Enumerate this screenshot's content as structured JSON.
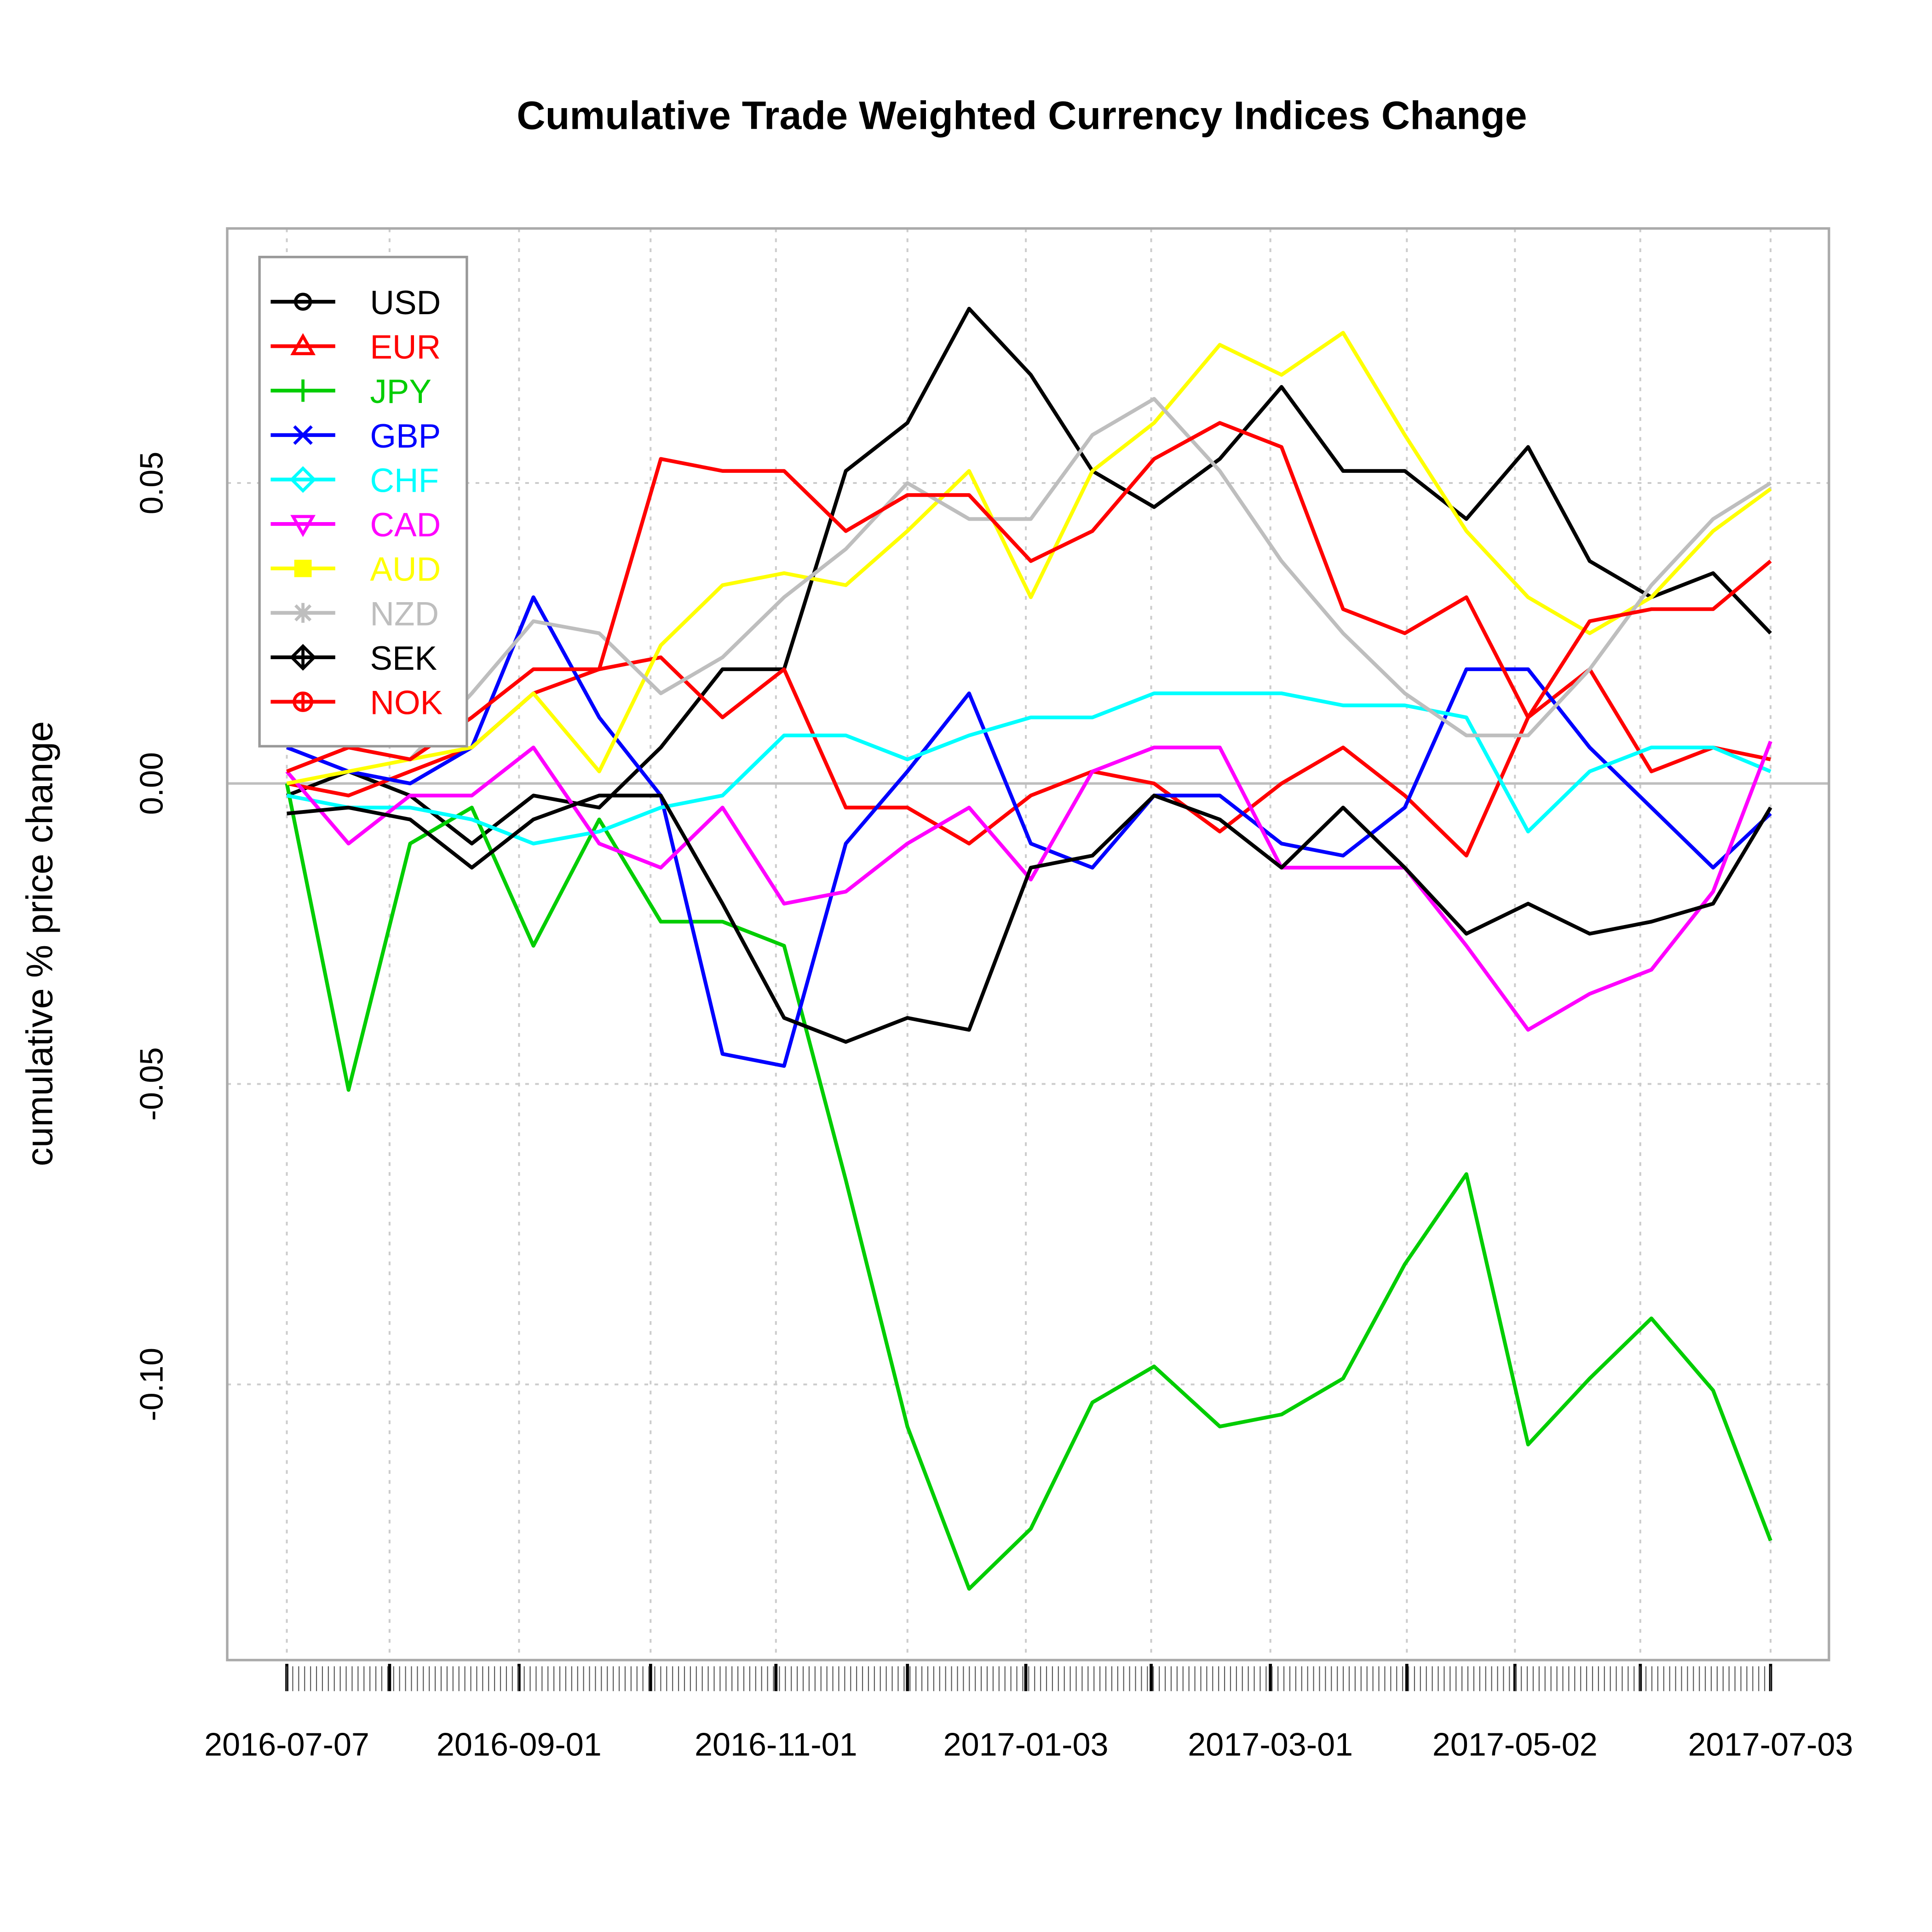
{
  "chart_data": {
    "type": "line",
    "title": "Cumulative Trade Weighted Currency Indices Change",
    "xlabel": "",
    "ylabel": "cumulative % price change",
    "x_unit": "days since 2016-07-07",
    "xlim": [
      0,
      361
    ],
    "ylim": [
      -0.146,
      0.0926
    ],
    "grid": true,
    "legend_position": "top-left",
    "y_ticks": [
      {
        "value": 0.05,
        "label": "0.05"
      },
      {
        "value": 0.0,
        "label": "0.00"
      },
      {
        "value": -0.05,
        "label": "-0.05"
      },
      {
        "value": -0.1,
        "label": "-0.10"
      }
    ],
    "x_ticks": [
      {
        "value": 0,
        "label": "2016-07-07"
      },
      {
        "value": 25,
        "label": ""
      },
      {
        "value": 56.5,
        "label": "2016-09-01"
      },
      {
        "value": 88.5,
        "label": ""
      },
      {
        "value": 119,
        "label": "2016-11-01"
      },
      {
        "value": 151,
        "label": ""
      },
      {
        "value": 179.8,
        "label": "2017-01-03"
      },
      {
        "value": 210.3,
        "label": ""
      },
      {
        "value": 239.3,
        "label": "2017-03-01"
      },
      {
        "value": 272.5,
        "label": ""
      },
      {
        "value": 298.8,
        "label": "2017-05-02"
      },
      {
        "value": 329.3,
        "label": ""
      },
      {
        "value": 361,
        "label": "2017-07-03"
      }
    ],
    "x": [
      0,
      15,
      30,
      45,
      60,
      76,
      91,
      106,
      121,
      136,
      151,
      166,
      181,
      196,
      211,
      227,
      242,
      257,
      272,
      287,
      302,
      317,
      332,
      347,
      361
    ],
    "series": [
      {
        "name": "USD",
        "color": "#000000",
        "symbol": "circle",
        "values": [
          -0.002,
          0.002,
          -0.002,
          -0.01,
          -0.002,
          -0.004,
          0.006,
          0.019,
          0.019,
          0.052,
          0.06,
          0.079,
          0.068,
          0.052,
          0.046,
          0.054,
          0.066,
          0.052,
          0.052,
          0.044,
          0.056,
          0.037,
          0.031,
          0.035,
          0.025
        ]
      },
      {
        "name": "EUR",
        "color": "#ff0000",
        "symbol": "triangle",
        "values": [
          0.0,
          -0.002,
          0.002,
          0.006,
          0.015,
          0.019,
          0.021,
          0.011,
          0.019,
          -0.004,
          -0.004,
          -0.01,
          -0.002,
          0.002,
          0.0,
          -0.008,
          0.0,
          0.006,
          -0.002,
          -0.012,
          0.011,
          0.019,
          0.002,
          0.006,
          0.004
        ]
      },
      {
        "name": "JPY",
        "color": "#00cd00",
        "symbol": "plus",
        "values": [
          0.0,
          -0.051,
          -0.01,
          -0.004,
          -0.027,
          -0.006,
          -0.023,
          -0.023,
          -0.027,
          -0.066,
          -0.107,
          -0.134,
          -0.124,
          -0.103,
          -0.097,
          -0.107,
          -0.105,
          -0.099,
          -0.08,
          -0.065,
          -0.11,
          -0.099,
          -0.089,
          -0.101,
          -0.126
        ]
      },
      {
        "name": "GBP",
        "color": "#0000ff",
        "symbol": "cross",
        "values": [
          0.006,
          0.002,
          0.0,
          0.006,
          0.031,
          0.011,
          -0.002,
          -0.045,
          -0.047,
          -0.01,
          0.002,
          0.015,
          -0.01,
          -0.014,
          -0.002,
          -0.002,
          -0.01,
          -0.012,
          -0.004,
          0.019,
          0.019,
          0.006,
          -0.004,
          -0.014,
          -0.005
        ]
      },
      {
        "name": "CHF",
        "color": "#00ffff",
        "symbol": "diamond",
        "values": [
          -0.002,
          -0.004,
          -0.004,
          -0.006,
          -0.01,
          -0.008,
          -0.004,
          -0.002,
          0.008,
          0.008,
          0.004,
          0.008,
          0.011,
          0.011,
          0.015,
          0.015,
          0.015,
          0.013,
          0.013,
          0.011,
          -0.008,
          0.002,
          0.006,
          0.006,
          0.002
        ]
      },
      {
        "name": "CAD",
        "color": "#ff00ff",
        "symbol": "triangle-down",
        "values": [
          0.002,
          -0.01,
          -0.002,
          -0.002,
          0.006,
          -0.01,
          -0.014,
          -0.004,
          -0.02,
          -0.018,
          -0.01,
          -0.004,
          -0.016,
          0.002,
          0.006,
          0.006,
          -0.014,
          -0.014,
          -0.014,
          -0.027,
          -0.041,
          -0.035,
          -0.031,
          -0.018,
          0.007
        ]
      },
      {
        "name": "AUD",
        "color": "#ffff00",
        "symbol": "square",
        "values": [
          0.0,
          0.002,
          0.004,
          0.006,
          0.015,
          0.002,
          0.023,
          0.033,
          0.035,
          0.033,
          0.042,
          0.052,
          0.031,
          0.052,
          0.06,
          0.073,
          0.068,
          0.075,
          0.058,
          0.042,
          0.031,
          0.025,
          0.031,
          0.042,
          0.049
        ]
      },
      {
        "name": "NZD",
        "color": "#bebebe",
        "symbol": "asterisk",
        "values": [
          0.002,
          0.006,
          0.004,
          0.015,
          0.027,
          0.025,
          0.015,
          0.021,
          0.031,
          0.039,
          0.05,
          0.044,
          0.044,
          0.058,
          0.064,
          0.052,
          0.037,
          0.025,
          0.015,
          0.008,
          0.008,
          0.019,
          0.033,
          0.044,
          0.05
        ]
      },
      {
        "name": "SEK",
        "color": "#000000",
        "symbol": "diamond-plus",
        "values": [
          -0.005,
          -0.004,
          -0.006,
          -0.014,
          -0.006,
          -0.002,
          -0.002,
          -0.02,
          -0.039,
          -0.043,
          -0.039,
          -0.041,
          -0.014,
          -0.012,
          -0.002,
          -0.006,
          -0.014,
          -0.004,
          -0.014,
          -0.025,
          -0.02,
          -0.025,
          -0.023,
          -0.02,
          -0.004
        ]
      },
      {
        "name": "NOK",
        "color": "#ff0000",
        "symbol": "circle-plus",
        "values": [
          0.002,
          0.006,
          0.004,
          0.011,
          0.019,
          0.019,
          0.054,
          0.052,
          0.052,
          0.042,
          0.048,
          0.048,
          0.037,
          0.042,
          0.054,
          0.06,
          0.056,
          0.029,
          0.025,
          0.031,
          0.011,
          0.027,
          0.029,
          0.029,
          0.037
        ]
      }
    ]
  }
}
